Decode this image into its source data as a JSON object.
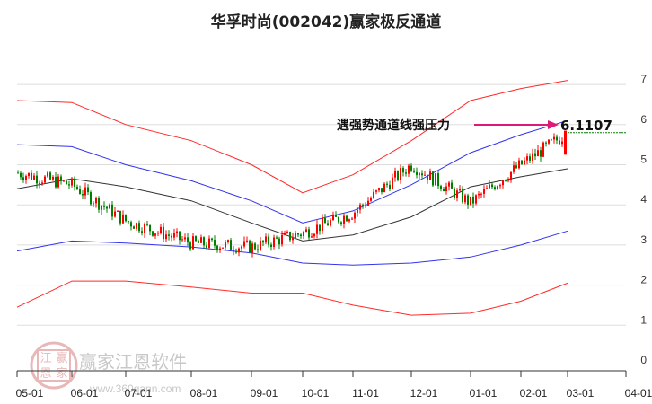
{
  "title": "华孚时尚(002042)赢家极反通道",
  "watermark": {
    "name": "赢家江恩软件",
    "url": "www.360gann.com",
    "seal": [
      "江",
      "赢",
      "恩",
      "家"
    ]
  },
  "annotation": {
    "label": "遇强势通道线强压力",
    "value": "6.1107",
    "color": "#e0187a"
  },
  "colors": {
    "outer_band": "#ff2a2a",
    "inner_band": "#3333ee",
    "mid_line": "#333333",
    "up": "#ff0000",
    "down": "#008000",
    "grid": "#dddddd"
  },
  "chart_data": {
    "type": "candlestick",
    "title": "华孚时尚(002042)赢家极反通道",
    "xlabel": "",
    "ylabel": "",
    "ylim": [
      0,
      7
    ],
    "grid": true,
    "y_ticks": [
      "0",
      "1",
      "2",
      "3",
      "4",
      "5",
      "6",
      "7"
    ],
    "x_ticks": [
      "05-01",
      "06-01",
      "07-01",
      "08-01",
      "09-01",
      "10-01",
      "11-01",
      "12-01",
      "01-01",
      "02-01",
      "03-01",
      "04-01"
    ],
    "series": [
      {
        "name": "upper_outer_band",
        "color": "red",
        "x": [
          "05-01",
          "06-01",
          "07-01",
          "08-01",
          "09-01",
          "10-01",
          "11-01",
          "12-01",
          "01-01",
          "02-01",
          "03-01"
        ],
        "values": [
          6.6,
          6.55,
          6.0,
          5.6,
          5.0,
          4.3,
          4.75,
          5.6,
          6.6,
          6.9,
          7.1
        ]
      },
      {
        "name": "upper_inner_band",
        "color": "blue",
        "x": [
          "05-01",
          "06-01",
          "07-01",
          "08-01",
          "09-01",
          "10-01",
          "11-01",
          "12-01",
          "01-01",
          "02-01",
          "03-01"
        ],
        "values": [
          5.5,
          5.45,
          5.0,
          4.6,
          4.1,
          3.55,
          3.85,
          4.5,
          5.3,
          5.75,
          6.1
        ]
      },
      {
        "name": "middle_line",
        "color": "black",
        "x": [
          "05-01",
          "06-01",
          "07-01",
          "08-01",
          "09-01",
          "10-01",
          "11-01",
          "12-01",
          "01-01",
          "02-01",
          "03-01"
        ],
        "values": [
          4.4,
          4.65,
          4.45,
          4.1,
          3.55,
          3.1,
          3.25,
          3.7,
          4.45,
          4.7,
          4.9
        ]
      },
      {
        "name": "lower_inner_band",
        "color": "blue",
        "x": [
          "05-01",
          "06-01",
          "07-01",
          "08-01",
          "09-01",
          "10-01",
          "11-01",
          "12-01",
          "01-01",
          "02-01",
          "03-01"
        ],
        "values": [
          2.85,
          3.1,
          3.05,
          2.95,
          2.8,
          2.55,
          2.5,
          2.55,
          2.7,
          3.0,
          3.35
        ]
      },
      {
        "name": "lower_outer_band",
        "color": "red",
        "x": [
          "05-01",
          "06-01",
          "07-01",
          "08-01",
          "09-01",
          "10-01",
          "11-01",
          "12-01",
          "01-01",
          "02-01",
          "03-01"
        ],
        "values": [
          1.45,
          2.1,
          2.1,
          1.95,
          1.8,
          1.8,
          1.5,
          1.25,
          1.3,
          1.6,
          2.05
        ]
      },
      {
        "name": "close_price",
        "color": "mixed",
        "x": [
          "05-01",
          "06-01",
          "07-01",
          "08-01",
          "09-01",
          "10-01",
          "11-01",
          "12-01",
          "01-01",
          "02-01",
          "03-01"
        ],
        "values": [
          4.8,
          4.5,
          3.6,
          3.05,
          2.95,
          3.3,
          3.8,
          5.0,
          4.05,
          5.0,
          5.8
        ]
      }
    ],
    "annotations": [
      {
        "text": "遇强势通道线强压力",
        "value": 6.1107,
        "arrow": true
      }
    ],
    "reference_line": {
      "value": 5.8,
      "style": "dashed",
      "color": "green"
    }
  }
}
